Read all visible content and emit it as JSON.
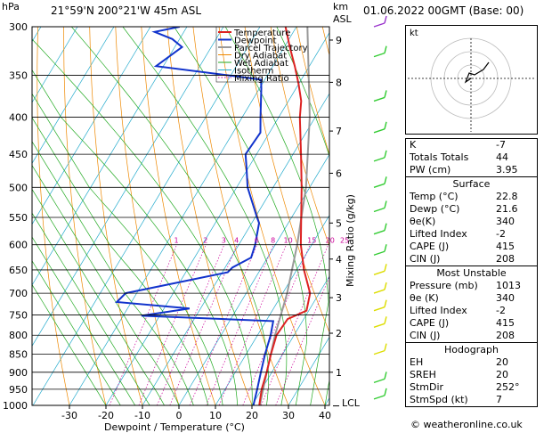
{
  "header": {
    "hpa": "hPa",
    "location": "21°59'N  200°21'W  45m  ASL",
    "km": "km",
    "asl": "ASL",
    "datetime": "01.06.2022  00GMT  (Base: 00)"
  },
  "legend": [
    "Temperature",
    "Dewpoint",
    "Parcel Trajectory",
    "Dry Adiabat",
    "Wet Adiabat",
    "Isotherm",
    "Mixing Ratio"
  ],
  "colors": {
    "temperature": "#dd2222",
    "dewpoint": "#1133cc",
    "parcel": "#999999",
    "dry_adiabat": "#ee8800",
    "wet_adiabat": "#22aa22",
    "isotherm": "#22aacc",
    "mixing_ratio": "#cc0099",
    "wind_low": "#dddd00",
    "wind_mid": "#33cc33",
    "wind_high": "#9933cc"
  },
  "chart_data": {
    "type": "line",
    "title": "",
    "xlabel": "Dewpoint / Temperature (°C)",
    "ylabel": "Mixing Ratio (g/kg)",
    "x_ticks": [
      "-30",
      "-20",
      "-10",
      "0",
      "10",
      "20",
      "30",
      "40"
    ],
    "pressure_ticks": [
      "300",
      "350",
      "400",
      "450",
      "500",
      "550",
      "600",
      "650",
      "700",
      "750",
      "800",
      "850",
      "900",
      "950",
      "1000"
    ],
    "km_ticks": [
      {
        "km": "9",
        "p": 313
      },
      {
        "km": "8",
        "p": 358
      },
      {
        "km": "7",
        "p": 418
      },
      {
        "km": "6",
        "p": 478
      },
      {
        "km": "5",
        "p": 560
      },
      {
        "km": "4",
        "p": 628
      },
      {
        "km": "3",
        "p": 710
      },
      {
        "km": "2",
        "p": 795
      },
      {
        "km": "1",
        "p": 900
      }
    ],
    "lcl_label": "LCL",
    "mixing_ratio_labels": [
      "1",
      "2",
      "3",
      "4",
      "6",
      "8",
      "10",
      "15",
      "20",
      "25"
    ],
    "series": [
      {
        "name": "Temperature",
        "points": [
          [
            1013,
            22.8
          ],
          [
            1000,
            22.0
          ],
          [
            950,
            20.0
          ],
          [
            900,
            18.6
          ],
          [
            850,
            16.8
          ],
          [
            800,
            15.2
          ],
          [
            760,
            15.6
          ],
          [
            740,
            19.4
          ],
          [
            700,
            17.5
          ],
          [
            650,
            12.0
          ],
          [
            600,
            7.0
          ],
          [
            550,
            2.6
          ],
          [
            500,
            -2.2
          ],
          [
            450,
            -7.8
          ],
          [
            400,
            -14.2
          ],
          [
            380,
            -16.5
          ],
          [
            360,
            -20.0
          ],
          [
            340,
            -24.0
          ],
          [
            320,
            -28.5
          ],
          [
            300,
            -33.0
          ]
        ]
      },
      {
        "name": "Dewpoint",
        "points": [
          [
            1013,
            21.6
          ],
          [
            1000,
            20.4
          ],
          [
            950,
            18.8
          ],
          [
            900,
            17.0
          ],
          [
            850,
            15.2
          ],
          [
            800,
            13.6
          ],
          [
            765,
            12.0
          ],
          [
            752,
            -25.0
          ],
          [
            735,
            -13.0
          ],
          [
            720,
            -34.0
          ],
          [
            700,
            -33.0
          ],
          [
            655,
            -8.5
          ],
          [
            645,
            -8.0
          ],
          [
            625,
            -4.5
          ],
          [
            600,
            -5.5
          ],
          [
            560,
            -8.0
          ],
          [
            550,
            -9.5
          ],
          [
            500,
            -17.0
          ],
          [
            470,
            -20.5
          ],
          [
            450,
            -23.0
          ],
          [
            420,
            -22.5
          ],
          [
            400,
            -25.0
          ],
          [
            365,
            -29.5
          ],
          [
            355,
            -31.0
          ],
          [
            350,
            -41.0
          ],
          [
            340,
            -62.0
          ],
          [
            320,
            -58.0
          ],
          [
            312,
            -62.0
          ],
          [
            305,
            -68.0
          ],
          [
            300,
            -62.0
          ]
        ]
      },
      {
        "name": "Parcel Trajectory",
        "points": [
          [
            1013,
            22.8
          ],
          [
            990,
            21.8
          ],
          [
            900,
            18.6
          ],
          [
            800,
            14.8
          ],
          [
            700,
            11.2
          ],
          [
            600,
            6.0
          ],
          [
            500,
            -1.0
          ],
          [
            400,
            -11.5
          ],
          [
            300,
            -27.0
          ]
        ]
      }
    ],
    "ylim": [
      300,
      1000
    ],
    "xlim": [
      -40,
      40
    ]
  },
  "hodograph": {
    "label": "kt"
  },
  "indices": {
    "top": [
      {
        "k": "K",
        "v": "-7"
      },
      {
        "k": "Totals Totals",
        "v": "44"
      },
      {
        "k": "PW (cm)",
        "v": "3.95"
      }
    ],
    "surface_title": "Surface",
    "surface": [
      {
        "k": "Temp (°C)",
        "v": "22.8"
      },
      {
        "k": "Dewp (°C)",
        "v": "21.6"
      },
      {
        "k": "θe(K)",
        "v": "340"
      },
      {
        "k": "Lifted Index",
        "v": "-2"
      },
      {
        "k": "CAPE (J)",
        "v": "415"
      },
      {
        "k": "CIN (J)",
        "v": "208"
      }
    ],
    "mu_title": "Most Unstable",
    "mu": [
      {
        "k": "Pressure (mb)",
        "v": "1013"
      },
      {
        "k": "θe (K)",
        "v": "340"
      },
      {
        "k": "Lifted Index",
        "v": "-2"
      },
      {
        "k": "CAPE (J)",
        "v": "415"
      },
      {
        "k": "CIN (J)",
        "v": "208"
      }
    ],
    "hodo_title": "Hodograph",
    "hodo": [
      {
        "k": "EH",
        "v": "20"
      },
      {
        "k": "SREH",
        "v": "20"
      },
      {
        "k": "StmDir",
        "v": "252°"
      },
      {
        "k": "StmSpd (kt)",
        "v": "7"
      }
    ]
  },
  "footer": {
    "credit": "© weatheronline.co.uk"
  }
}
